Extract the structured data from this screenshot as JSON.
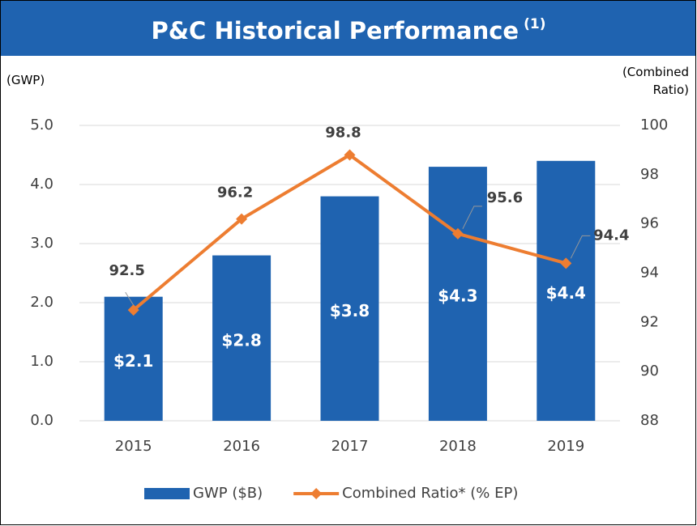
{
  "chart_data": {
    "type": "bar",
    "title": "P&C Historical Performance",
    "title_note": "(1)",
    "y_label": "(GWP)",
    "y2_label": "(Combined Ratio)",
    "categories": [
      "2015",
      "2016",
      "2017",
      "2018",
      "2019"
    ],
    "series": [
      {
        "name": "GWP ($B)",
        "type": "bar",
        "color": "#1f63b0",
        "values": [
          2.1,
          2.8,
          3.8,
          4.3,
          4.4
        ],
        "value_labels": [
          "$2.1",
          "$2.8",
          "$3.8",
          "$4.3",
          "$4.4"
        ]
      },
      {
        "name": "Combined Ratio* (% EP)",
        "type": "line",
        "axis": "y2",
        "color": "#ed7d31",
        "values": [
          92.5,
          96.2,
          98.8,
          95.6,
          94.4
        ]
      }
    ],
    "ylim": [
      0,
      5
    ],
    "yticks": [
      {
        "value": 0,
        "label": "0.0"
      },
      {
        "value": 1,
        "label": "1.0"
      },
      {
        "value": 2,
        "label": "2.0"
      },
      {
        "value": 3,
        "label": "3.0"
      },
      {
        "value": 4,
        "label": "4.0"
      },
      {
        "value": 5,
        "label": "5.0"
      }
    ],
    "y2lim": [
      88,
      100
    ],
    "y2ticks": [
      88,
      90,
      92,
      94,
      96,
      98,
      100
    ],
    "grid": true,
    "legend": "bottom"
  }
}
